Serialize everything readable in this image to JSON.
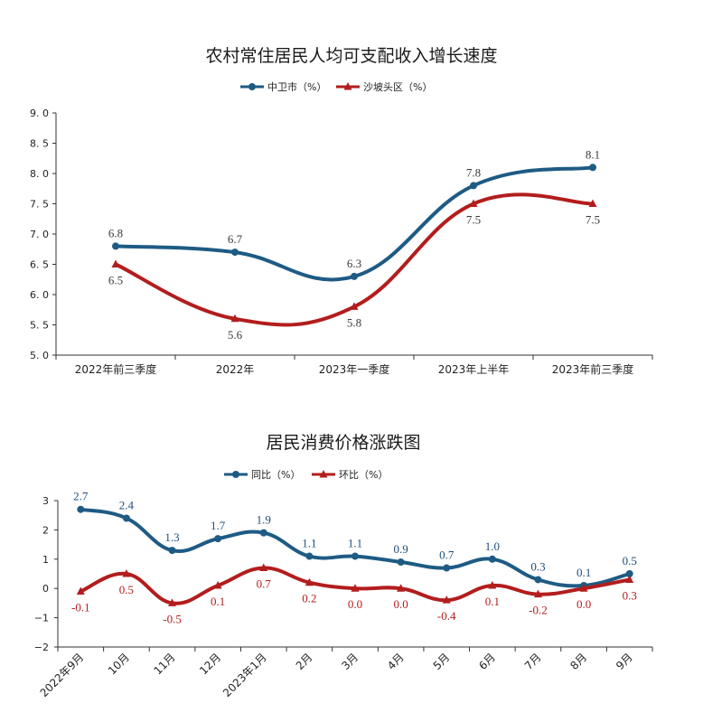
{
  "colors": {
    "series_a": "#1e5b84",
    "series_b": "#b31d1d",
    "text": "#222222"
  },
  "chart_data": [
    {
      "type": "line",
      "title": "农村常住居民人均可支配收入增长速度",
      "categories": [
        "2022年前三季度",
        "2022年",
        "2023年一季度",
        "2023年上半年",
        "2023年前三季度"
      ],
      "ylim": [
        5.0,
        9.0
      ],
      "yticks": [
        "9. 0",
        "8. 5",
        "8. 0",
        "7. 5",
        "7. 0",
        "6. 5",
        "6. 0",
        "5. 5",
        "5. 0"
      ],
      "ytick_values": [
        9.0,
        8.5,
        8.0,
        7.5,
        7.0,
        6.5,
        6.0,
        5.5,
        5.0
      ],
      "legend_position": "top-center",
      "series": [
        {
          "name": "中卫市（%）",
          "values": [
            6.8,
            6.7,
            6.3,
            7.8,
            8.1
          ],
          "labels": [
            "6.8",
            "6.7",
            "6.3",
            "7.8",
            "8.1"
          ],
          "marker": "circle"
        },
        {
          "name": "沙坡头区（%）",
          "values": [
            6.5,
            5.6,
            5.8,
            7.5,
            7.5
          ],
          "labels": [
            "6.5",
            "5.6",
            "5.8",
            "7.5",
            "7.5"
          ],
          "marker": "triangle"
        }
      ]
    },
    {
      "type": "line",
      "title": "居民消费价格涨跌图",
      "categories": [
        "2022年9月",
        "10月",
        "11月",
        "12月",
        "2023年1月",
        "2月",
        "3月",
        "4月",
        "5月",
        "6月",
        "7月",
        "8月",
        "9月"
      ],
      "ylim": [
        -2,
        3
      ],
      "yticks": [
        "3",
        "2",
        "1",
        "0",
        "−1",
        "−2"
      ],
      "ytick_values": [
        3,
        2,
        1,
        0,
        -1,
        -2
      ],
      "legend_position": "top-center",
      "series": [
        {
          "name": "同比（%）",
          "values": [
            2.7,
            2.4,
            1.3,
            1.7,
            1.9,
            1.1,
            1.1,
            0.9,
            0.7,
            1.0,
            0.3,
            0.1,
            0.5
          ],
          "labels": [
            "2.7",
            "2.4",
            "1.3",
            "1.7",
            "1.9",
            "1.1",
            "1.1",
            "0.9",
            "0.7",
            "1.0",
            "0.3",
            "0.1",
            "0.5"
          ],
          "marker": "circle"
        },
        {
          "name": "环比（%）",
          "values": [
            -0.1,
            0.5,
            -0.5,
            0.1,
            0.7,
            0.2,
            0.0,
            0.0,
            -0.4,
            0.1,
            -0.2,
            0.0,
            0.3
          ],
          "labels": [
            "-0.1",
            "0.5",
            "-0.5",
            "0.1",
            "0.7",
            "0.2",
            "0.0",
            "0.0",
            "-0.4",
            "0.1",
            "-0.2",
            "0.0",
            "0.3"
          ],
          "marker": "triangle"
        }
      ]
    }
  ]
}
